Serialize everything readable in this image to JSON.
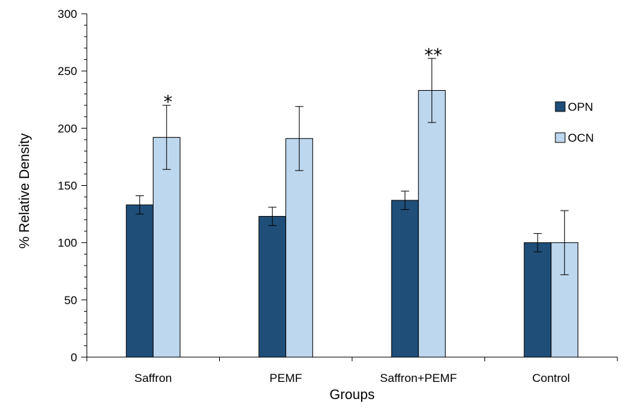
{
  "chart_data": {
    "type": "bar",
    "title": "",
    "xlabel": "Groups",
    "ylabel": "% Relative  Density",
    "ylim": [
      0,
      300
    ],
    "yticks": [
      0,
      50,
      100,
      150,
      200,
      250,
      300
    ],
    "yminor_step": 10,
    "categories": [
      "Saffron",
      "PEMF",
      "Saffron+PEMF",
      "Control"
    ],
    "series": [
      {
        "name": "OPN",
        "color": "#1f4e79",
        "values": [
          133,
          123,
          137,
          100
        ],
        "errors": [
          8,
          8,
          8,
          8
        ]
      },
      {
        "name": "OCN",
        "color": "#bdd7ee",
        "values": [
          192,
          191,
          233,
          100
        ],
        "errors": [
          28,
          28,
          28,
          28
        ]
      }
    ],
    "annotations": [
      {
        "category": "Saffron",
        "series": "OCN",
        "text": "*"
      },
      {
        "category": "Saffron+PEMF",
        "series": "OCN",
        "text": "**"
      }
    ],
    "legend_position": "right",
    "grid": false
  }
}
